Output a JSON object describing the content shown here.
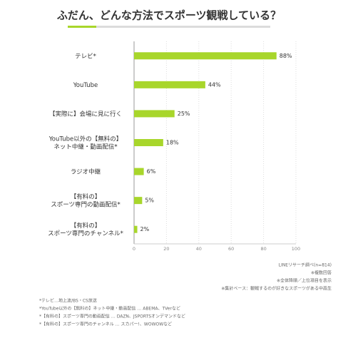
{
  "chart_data": {
    "type": "bar",
    "orientation": "horizontal",
    "title": "ふだん、どんな方法でスポーツ観戦している？",
    "categories": [
      "テレビ*",
      "YouTube",
      "【実際に】会場に見に行く",
      "YouTube以外の【無料の】\nネット中継・動画配信*",
      "ラジオ中継",
      "【有料の】\nスポーツ専門の動画配信*",
      "【有料の】\nスポーツ専門のチャンネル*"
    ],
    "values": [
      88,
      44,
      25,
      18,
      6,
      5,
      2
    ],
    "value_labels": [
      "88%",
      "44%",
      "25%",
      "18%",
      "6%",
      "5%",
      "2%"
    ],
    "color": "#a8d62b",
    "xlim": [
      0,
      100
    ],
    "xticks": [
      0,
      20,
      40,
      60,
      80,
      100
    ],
    "grid": true,
    "source_notes": [
      "LINEリサーチ調べ(n=814)",
      "※複数回答",
      "※全体降順／上位項目を表示",
      "※集計ベース：観戦するのが好きなスポーツがある中高生"
    ],
    "footnotes": [
      "*テレビ…地上波/BS・CS放送",
      "*YouTube以外の【無料の】ネット中継・動画配信 … ABEMA、TVerなど",
      "*【有料の】スポーツ専門の動画配信 … DAZN、JSPORTSオンデマンドなど",
      "*【有料の】スポーツ専門のチャンネル … スカパー!、WOWOWなど"
    ]
  }
}
